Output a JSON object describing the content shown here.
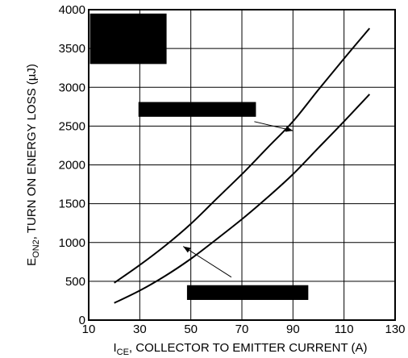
{
  "chart_data": {
    "type": "line",
    "xlabel": {
      "main": "I",
      "sub": "CE",
      "rest": ", COLLECTOR TO EMITTER CURRENT (A)"
    },
    "ylabel": {
      "main": "E",
      "sub": "ON2",
      "rest": ", TURN ON ENERGY LOSS (µJ)"
    },
    "xlim": [
      10,
      130
    ],
    "ylim": [
      0,
      4000
    ],
    "xticks": [
      10,
      30,
      50,
      70,
      90,
      110,
      130
    ],
    "yticks": [
      0,
      500,
      1000,
      1500,
      2000,
      2500,
      3000,
      3500,
      4000
    ],
    "grid": true,
    "series": [
      {
        "x": [
          20,
          30,
          40,
          50,
          60,
          70,
          80,
          90,
          100,
          110,
          120
        ],
        "values": [
          480,
          710,
          960,
          1240,
          1560,
          1880,
          2220,
          2560,
          2970,
          3370,
          3760
        ]
      },
      {
        "x": [
          20,
          30,
          40,
          50,
          60,
          70,
          80,
          90,
          100,
          110,
          120
        ],
        "values": [
          220,
          380,
          570,
          790,
          1040,
          1300,
          1580,
          1880,
          2220,
          2560,
          2910
        ]
      }
    ],
    "annotations": [
      {
        "target_series": 0,
        "target_x": 90,
        "target_y": 2440
      },
      {
        "target_series": 1,
        "target_x": 47,
        "target_y": 950
      }
    ],
    "redactions": [
      {
        "x1": 10.5,
        "x2": 40.5,
        "y1": 3300,
        "y2": 3950
      },
      {
        "x1": 29.5,
        "x2": 75.5,
        "y1": 2620,
        "y2": 2810
      },
      {
        "x1": 48.5,
        "x2": 96,
        "y1": 260,
        "y2": 450
      }
    ]
  }
}
